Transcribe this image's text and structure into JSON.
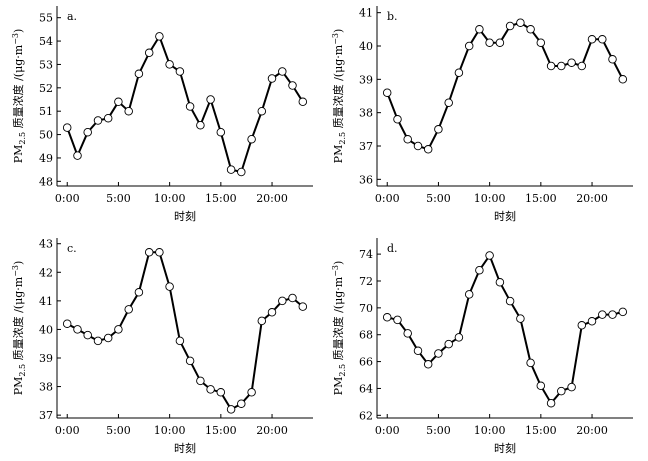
{
  "chart_data": [
    {
      "type": "line",
      "panel_label": "a.",
      "xlabel": "时刻",
      "ylabel": {
        "main": "PM",
        "sub": "2.5",
        "rest": " 质量浓度 /(μg·m",
        "sup": "−3",
        "close": ")"
      },
      "x_ticks": [
        {
          "v": 0,
          "label": "0:00"
        },
        {
          "v": 5,
          "label": "5:00"
        },
        {
          "v": 10,
          "label": "10:00"
        },
        {
          "v": 15,
          "label": "15:00"
        },
        {
          "v": 20,
          "label": "20:00"
        }
      ],
      "xlim": [
        -1,
        24
      ],
      "ylim": [
        47.8,
        55.5
      ],
      "y_ticks": [
        48,
        49,
        50,
        51,
        52,
        53,
        54,
        55
      ],
      "x": [
        0,
        1,
        2,
        3,
        4,
        5,
        6,
        7,
        8,
        9,
        10,
        11,
        12,
        13,
        14,
        15,
        16,
        17,
        18,
        19,
        20,
        21,
        22,
        23
      ],
      "values": [
        50.3,
        49.1,
        50.1,
        50.6,
        50.7,
        51.4,
        51.0,
        52.6,
        53.5,
        54.2,
        53.0,
        52.7,
        51.2,
        50.4,
        51.5,
        50.1,
        48.5,
        48.4,
        49.8,
        51.0,
        52.4,
        52.7,
        52.1,
        51.4
      ]
    },
    {
      "type": "line",
      "panel_label": "b.",
      "xlabel": "时刻",
      "ylabel": {
        "main": "PM",
        "sub": "2.5",
        "rest": " 质量浓度 /(μg·m",
        "sup": "−3",
        "close": ")"
      },
      "x_ticks": [
        {
          "v": 0,
          "label": "0:00"
        },
        {
          "v": 5,
          "label": "5:00"
        },
        {
          "v": 10,
          "label": "10:00"
        },
        {
          "v": 15,
          "label": "15:00"
        },
        {
          "v": 20,
          "label": "20:00"
        }
      ],
      "xlim": [
        -1,
        24
      ],
      "ylim": [
        35.8,
        41.2
      ],
      "y_ticks": [
        36,
        37,
        38,
        39,
        40,
        41
      ],
      "x": [
        0,
        1,
        2,
        3,
        4,
        5,
        6,
        7,
        8,
        9,
        10,
        11,
        12,
        13,
        14,
        15,
        16,
        17,
        18,
        19,
        20,
        21,
        22,
        23
      ],
      "values": [
        38.6,
        37.8,
        37.2,
        37.0,
        36.9,
        37.5,
        38.3,
        39.2,
        40.0,
        40.5,
        40.1,
        40.1,
        40.6,
        40.7,
        40.5,
        40.1,
        39.4,
        39.4,
        39.5,
        39.4,
        40.2,
        40.2,
        39.6,
        39.0
      ]
    },
    {
      "type": "line",
      "panel_label": "c.",
      "xlabel": "时刻",
      "ylabel": {
        "main": "PM",
        "sub": "2.5",
        "rest": " 质量浓度 /(μg·m",
        "sup": "−3",
        "close": ")"
      },
      "x_ticks": [
        {
          "v": 0,
          "label": "0:00"
        },
        {
          "v": 5,
          "label": "5:00"
        },
        {
          "v": 10,
          "label": "10:00"
        },
        {
          "v": 15,
          "label": "15:00"
        },
        {
          "v": 20,
          "label": "20:00"
        }
      ],
      "xlim": [
        -1,
        24
      ],
      "ylim": [
        36.9,
        43.2
      ],
      "y_ticks": [
        37,
        38,
        39,
        40,
        41,
        42,
        43
      ],
      "x": [
        0,
        1,
        2,
        3,
        4,
        5,
        6,
        7,
        8,
        9,
        10,
        11,
        12,
        13,
        14,
        15,
        16,
        17,
        18,
        19,
        20,
        21,
        22,
        23
      ],
      "values": [
        40.2,
        40.0,
        39.8,
        39.6,
        39.7,
        40.0,
        40.7,
        41.3,
        42.7,
        42.7,
        41.5,
        39.6,
        38.9,
        38.2,
        37.9,
        37.8,
        37.2,
        37.4,
        37.8,
        40.3,
        40.6,
        41.0,
        41.1,
        40.8
      ]
    },
    {
      "type": "line",
      "panel_label": "d.",
      "xlabel": "时刻",
      "ylabel": {
        "main": "PM",
        "sub": "2.5",
        "rest": " 质量浓度 /(μg·m",
        "sup": "−3",
        "close": ")"
      },
      "x_ticks": [
        {
          "v": 0,
          "label": "0:00"
        },
        {
          "v": 5,
          "label": "5:00"
        },
        {
          "v": 10,
          "label": "10:00"
        },
        {
          "v": 15,
          "label": "15:00"
        },
        {
          "v": 20,
          "label": "20:00"
        }
      ],
      "xlim": [
        -1,
        24
      ],
      "ylim": [
        61.8,
        75.2
      ],
      "y_ticks": [
        62,
        64,
        66,
        68,
        70,
        72,
        74
      ],
      "x": [
        0,
        1,
        2,
        3,
        4,
        5,
        6,
        7,
        8,
        9,
        10,
        11,
        12,
        13,
        14,
        15,
        16,
        17,
        18,
        19,
        20,
        21,
        22,
        23
      ],
      "values": [
        69.3,
        69.1,
        68.1,
        66.8,
        65.8,
        66.6,
        67.3,
        67.8,
        71.0,
        72.8,
        73.9,
        71.9,
        70.5,
        69.2,
        65.9,
        64.2,
        62.9,
        63.8,
        64.1,
        68.7,
        69.0,
        69.5,
        69.5,
        69.7
      ]
    }
  ]
}
